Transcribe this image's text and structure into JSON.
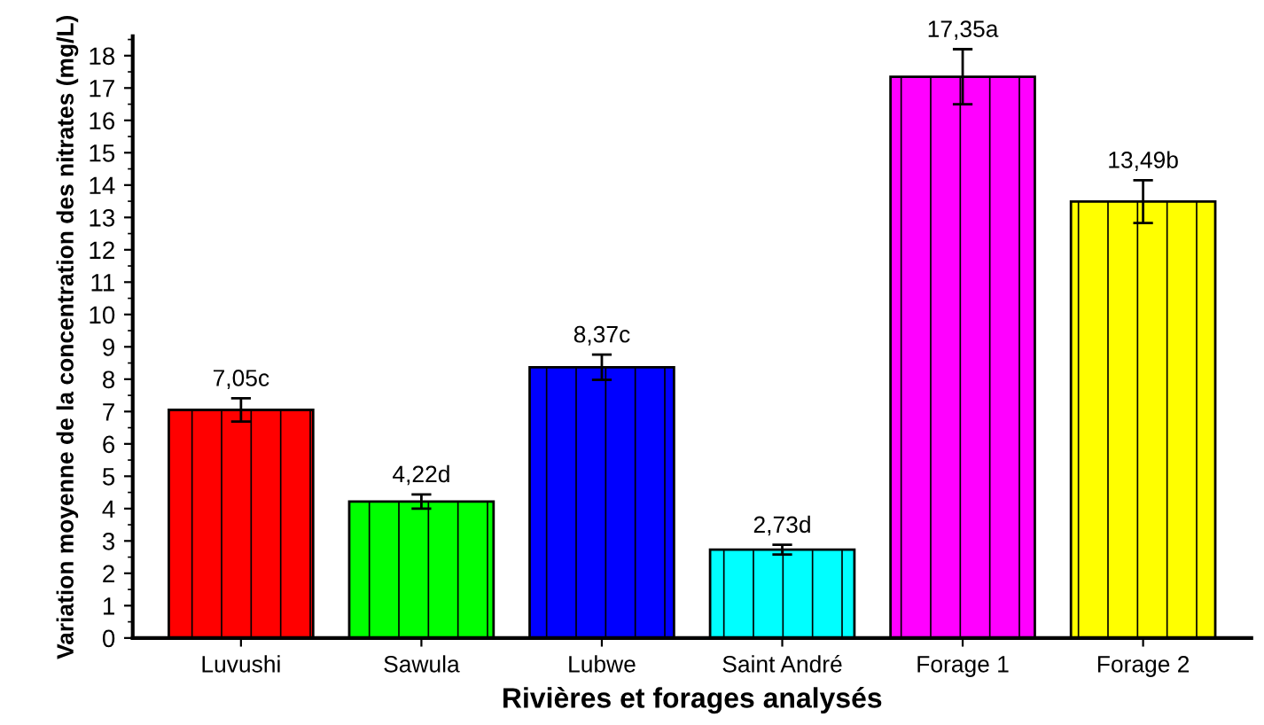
{
  "chart_data": {
    "type": "bar",
    "xlabel": "Rivières et forages analysés",
    "ylabel": "Variation moyenne de la concentration des nitrates (mg/L)",
    "categories": [
      "Luvushi",
      "Sawula",
      "Lubwe",
      "Saint André",
      "Forage 1",
      "Forage 2"
    ],
    "values": [
      7.05,
      4.22,
      8.37,
      2.73,
      17.35,
      13.49
    ],
    "colors": [
      "#ff0000",
      "#00ff00",
      "#0000ff",
      "#00ffff",
      "#ff00ff",
      "#ffff00"
    ],
    "errors": [
      0.36,
      0.22,
      0.39,
      0.15,
      0.85,
      0.66
    ],
    "value_labels": [
      "7,05c",
      "4,22d",
      "8,37c",
      "2,73d",
      "17,35a",
      "13,49b"
    ],
    "ylim": [
      0,
      18.6
    ],
    "yticks": [
      0,
      1,
      2,
      3,
      4,
      5,
      6,
      7,
      8,
      9,
      10,
      11,
      12,
      13,
      14,
      15,
      16,
      17,
      18
    ],
    "grid": false,
    "legend": false
  }
}
